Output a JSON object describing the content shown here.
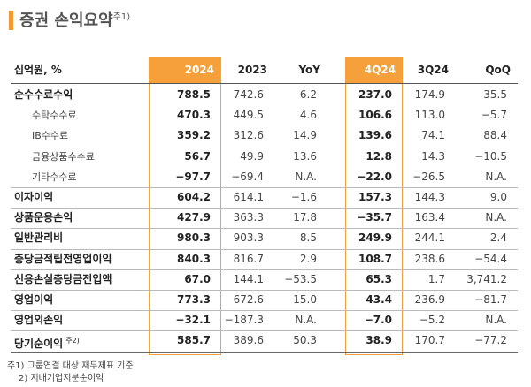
{
  "header": {
    "title": "증권 손익요약",
    "note": "주1)"
  },
  "table": {
    "columns": [
      "십억원, %",
      "2024",
      "2023",
      "YoY",
      "4Q24",
      "3Q24",
      "QoQ"
    ],
    "rows": [
      {
        "label": "순수수료수익",
        "values": [
          "788.5",
          "742.6",
          "6.2",
          "237.0",
          "174.9",
          "35.5"
        ]
      },
      {
        "label": "수탁수수료",
        "values": [
          "470.3",
          "449.5",
          "4.6",
          "106.6",
          "113.0",
          "−5.7"
        ]
      },
      {
        "label": "IB수수료",
        "values": [
          "359.2",
          "312.6",
          "14.9",
          "139.6",
          "74.1",
          "88.4"
        ]
      },
      {
        "label": "금융상품수수료",
        "values": [
          "56.7",
          "49.9",
          "13.6",
          "12.8",
          "14.3",
          "−10.5"
        ]
      },
      {
        "label": "기타수수료",
        "values": [
          "−97.7",
          "−69.4",
          "N.A.",
          "−22.0",
          "−26.5",
          "N.A."
        ]
      },
      {
        "label": "이자이익",
        "values": [
          "604.2",
          "614.1",
          "−1.6",
          "157.3",
          "144.3",
          "9.0"
        ]
      },
      {
        "label": "상품운용손익",
        "values": [
          "427.9",
          "363.3",
          "17.8",
          "−35.7",
          "163.4",
          "N.A."
        ]
      },
      {
        "label": "일반관리비",
        "values": [
          "980.3",
          "903.3",
          "8.5",
          "249.9",
          "244.1",
          "2.4"
        ]
      },
      {
        "label": "충당금적립전영업이익",
        "values": [
          "840.3",
          "816.7",
          "2.9",
          "108.7",
          "238.6",
          "−54.4"
        ]
      },
      {
        "label": "신용손실충당금전입액",
        "values": [
          "67.0",
          "144.1",
          "−53.5",
          "65.3",
          "1.7",
          "3,741.2"
        ]
      },
      {
        "label": "영업이익",
        "values": [
          "773.3",
          "672.6",
          "15.0",
          "43.4",
          "236.9",
          "−81.7"
        ]
      },
      {
        "label": "영업외손익",
        "values": [
          "−32.1",
          "−187.3",
          "N.A.",
          "−7.0",
          "−5.2",
          "N.A."
        ]
      },
      {
        "label": "당기순이익",
        "note": "주2)",
        "values": [
          "585.7",
          "389.6",
          "50.3",
          "38.9",
          "170.7",
          "−77.2"
        ]
      }
    ]
  },
  "footnotes": [
    "주1) 그룹연결 대상 재무제표 기준",
    "2) 지배기업지분순이익"
  ]
}
